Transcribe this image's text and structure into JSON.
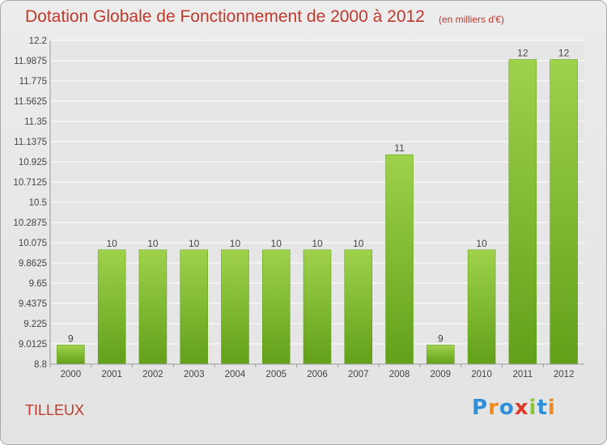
{
  "title": "Dotation Globale de Fonctionnement de 2000 à 2012",
  "unit": "(en milliers d'€)",
  "commune": "TILLEUX",
  "logo": {
    "text": "Proxiti",
    "letters": [
      {
        "ch": "P",
        "color": "#2f8fd8"
      },
      {
        "ch": "r",
        "color": "#f08a1c"
      },
      {
        "ch": "o",
        "color": "#2f8fd8"
      },
      {
        "ch": "x",
        "color": "#e03a2b"
      },
      {
        "ch": "i",
        "color": "#8cc43a"
      },
      {
        "ch": "t",
        "color": "#2f8fd8"
      },
      {
        "ch": "i",
        "color": "#f08a1c"
      }
    ]
  },
  "colors": {
    "bar_top": "#9fd24b",
    "bar_bottom": "#62a019",
    "bar_edge": "#5c9a12",
    "grid": "#ffffff",
    "axis_text": "#444444",
    "title": "#c0392b"
  },
  "chart_data": {
    "type": "bar",
    "categories": [
      "2000",
      "2001",
      "2002",
      "2003",
      "2004",
      "2005",
      "2006",
      "2007",
      "2008",
      "2009",
      "2010",
      "2011",
      "2012"
    ],
    "values": [
      9,
      10,
      10,
      10,
      10,
      10,
      10,
      10,
      11,
      9,
      10,
      12,
      12
    ],
    "data_labels": [
      "9",
      "10",
      "10",
      "10",
      "10",
      "10",
      "10",
      "10",
      "11",
      "9",
      "10",
      "12",
      "12"
    ],
    "y_ticks": [
      "8.8",
      "9.0125",
      "9.225",
      "9.4375",
      "9.65",
      "9.8625",
      "10.075",
      "10.2875",
      "10.5",
      "10.7125",
      "10.925",
      "11.1375",
      "11.35",
      "11.5625",
      "11.775",
      "11.9875",
      "12.2"
    ],
    "ylim": [
      8.8,
      12.2
    ],
    "grid": true,
    "xlabel": "",
    "ylabel": ""
  }
}
